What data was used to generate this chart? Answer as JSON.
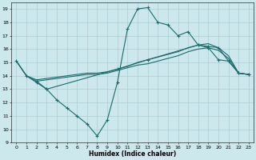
{
  "background_color": "#cce8ec",
  "grid_color": "#aacdd4",
  "line_color": "#1a6b6b",
  "xlabel": "Humidex (Indice chaleur)",
  "ylim": [
    9,
    19.5
  ],
  "xlim": [
    -0.5,
    23.5
  ],
  "yticks": [
    9,
    10,
    11,
    12,
    13,
    14,
    15,
    16,
    17,
    18,
    19
  ],
  "xticks": [
    0,
    1,
    2,
    3,
    4,
    5,
    6,
    7,
    8,
    9,
    10,
    11,
    12,
    13,
    14,
    15,
    16,
    17,
    18,
    19,
    20,
    21,
    22,
    23
  ],
  "series": [
    {
      "x": [
        0,
        1,
        2,
        3,
        4,
        5,
        6,
        7,
        8,
        9,
        10,
        11,
        12,
        13,
        14,
        15,
        16,
        17,
        18,
        19,
        20,
        21,
        22,
        23
      ],
      "y": [
        15.1,
        14.0,
        13.5,
        13.0,
        12.2,
        11.6,
        11.0,
        10.4,
        9.5,
        10.7,
        13.5,
        17.5,
        19.0,
        19.1,
        18.0,
        17.8,
        17.0,
        17.3,
        16.3,
        16.1,
        15.2,
        15.1,
        14.2,
        14.1
      ],
      "marker": true
    },
    {
      "x": [
        0,
        1,
        2,
        3,
        4,
        5,
        6,
        7,
        8,
        9,
        10,
        11,
        12,
        13,
        14,
        15,
        16,
        17,
        18,
        19,
        20,
        21,
        22,
        23
      ],
      "y": [
        15.1,
        14.0,
        13.7,
        13.8,
        13.9,
        14.0,
        14.1,
        14.2,
        14.2,
        14.3,
        14.5,
        14.7,
        15.0,
        15.2,
        15.4,
        15.6,
        15.8,
        16.1,
        16.3,
        16.4,
        16.1,
        15.5,
        14.2,
        14.1
      ],
      "marker": false
    },
    {
      "x": [
        0,
        1,
        2,
        3,
        4,
        5,
        6,
        7,
        8,
        9,
        10,
        11,
        12,
        13,
        14,
        15,
        16,
        17,
        18,
        19,
        20,
        21,
        22,
        23
      ],
      "y": [
        15.1,
        14.0,
        13.6,
        13.7,
        13.8,
        13.9,
        14.0,
        14.1,
        14.1,
        14.2,
        14.4,
        14.6,
        14.8,
        14.9,
        15.1,
        15.3,
        15.5,
        15.8,
        16.0,
        16.1,
        15.9,
        15.3,
        14.2,
        14.1
      ],
      "marker": false
    },
    {
      "x": [
        2,
        3,
        10,
        13,
        18,
        19,
        20,
        21,
        22,
        23
      ],
      "y": [
        13.6,
        13.0,
        14.5,
        15.2,
        16.3,
        16.2,
        16.1,
        15.1,
        14.2,
        14.1
      ],
      "marker": true
    }
  ]
}
